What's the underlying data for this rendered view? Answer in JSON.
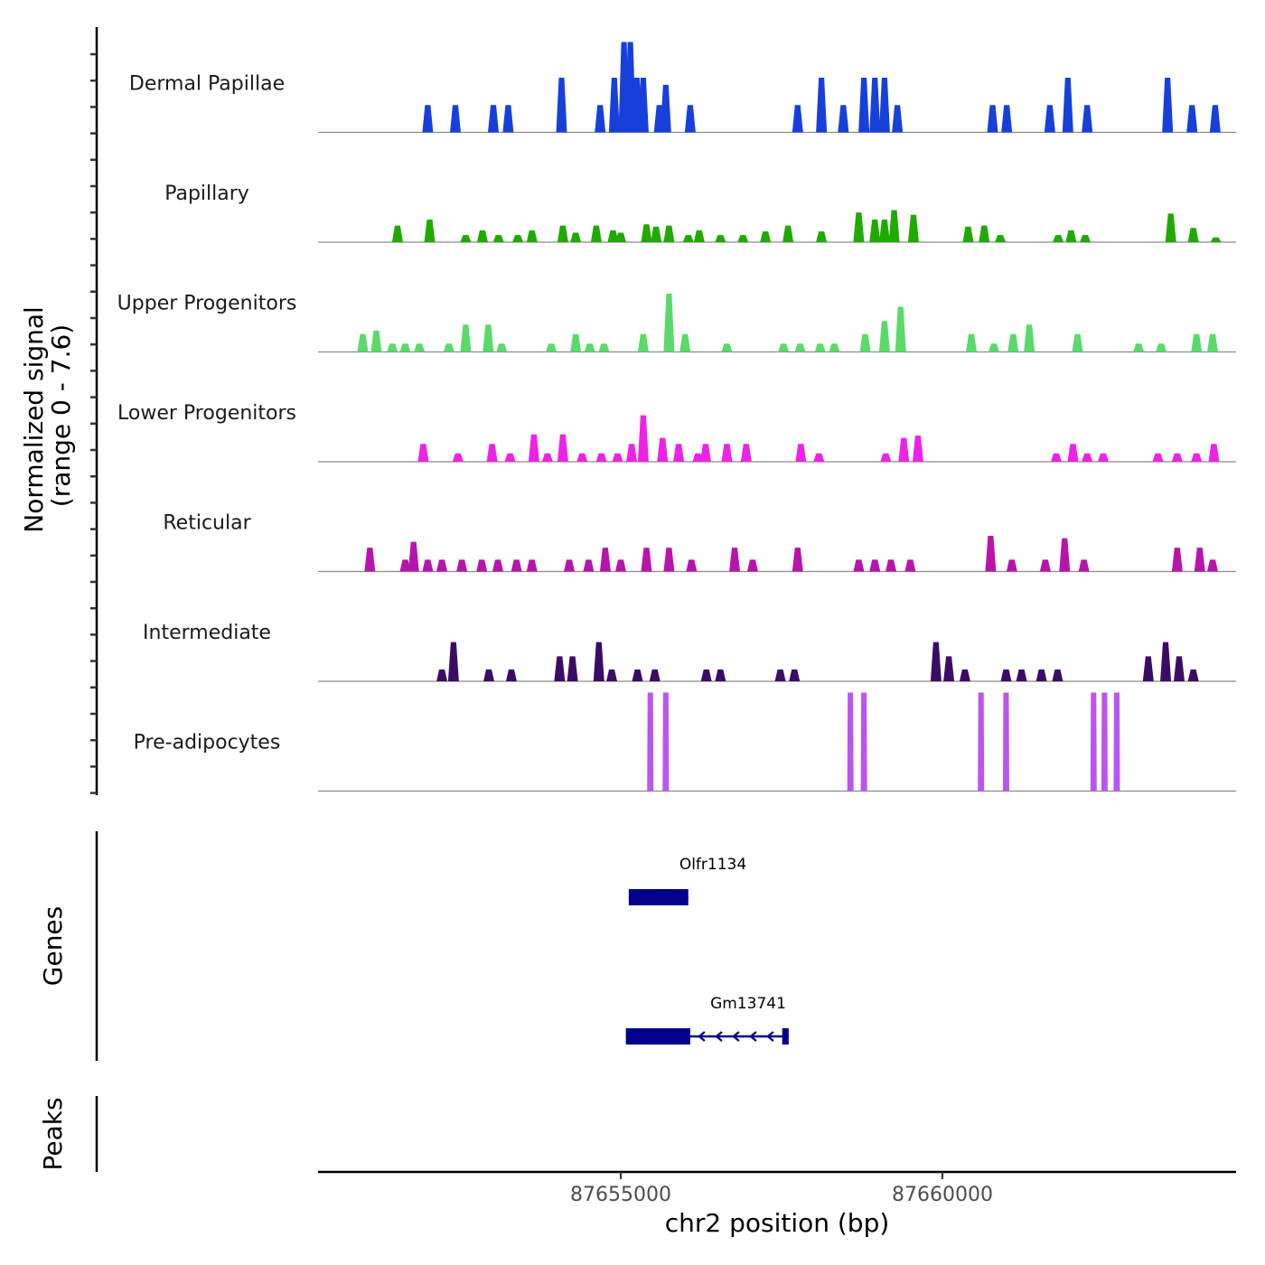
{
  "chart_data": {
    "type": "area",
    "title": "",
    "xlabel": "chr2 position (bp)",
    "ylabel": "Normalized signal\n(range 0 - 7.6)",
    "ylabel_lines": [
      "Normalized signal",
      "(range 0 - 7.6)"
    ],
    "ylim": [
      0,
      7.6
    ],
    "xlim": [
      87650295,
      87664565
    ],
    "x_ticks": [
      87655000,
      87660000
    ],
    "x_tick_labels": [
      "87655000",
      "87660000"
    ],
    "grid": false,
    "tracks": [
      {
        "name": "Dermal Papillae",
        "color": "#1740DB",
        "peaks": [
          [
            87652000,
            2.3
          ],
          [
            87652430,
            2.3
          ],
          [
            87653020,
            2.3
          ],
          [
            87653250,
            2.3
          ],
          [
            87654080,
            4.6
          ],
          [
            87654680,
            2.3
          ],
          [
            87654900,
            4.6
          ],
          [
            87655050,
            7.6
          ],
          [
            87655150,
            7.6
          ],
          [
            87655250,
            4.6
          ],
          [
            87655350,
            4.6
          ],
          [
            87655600,
            2.3
          ],
          [
            87655700,
            4.0
          ],
          [
            87656080,
            2.3
          ],
          [
            87657750,
            2.3
          ],
          [
            87658120,
            4.6
          ],
          [
            87658460,
            2.3
          ],
          [
            87658780,
            4.6
          ],
          [
            87658950,
            4.6
          ],
          [
            87659100,
            4.6
          ],
          [
            87659300,
            2.3
          ],
          [
            87660780,
            2.3
          ],
          [
            87661000,
            2.3
          ],
          [
            87661670,
            2.3
          ],
          [
            87661950,
            4.6
          ],
          [
            87662250,
            2.3
          ],
          [
            87663500,
            4.6
          ],
          [
            87663880,
            2.3
          ],
          [
            87664240,
            2.3
          ]
        ]
      },
      {
        "name": "Papillary",
        "color": "#1FAA00",
        "peaks": [
          [
            87651530,
            1.4
          ],
          [
            87652030,
            1.9
          ],
          [
            87652590,
            0.6
          ],
          [
            87652850,
            1.0
          ],
          [
            87653100,
            0.6
          ],
          [
            87653400,
            0.6
          ],
          [
            87653620,
            1.0
          ],
          [
            87654100,
            1.4
          ],
          [
            87654300,
            0.8
          ],
          [
            87654620,
            1.4
          ],
          [
            87654880,
            1.0
          ],
          [
            87655000,
            0.8
          ],
          [
            87655400,
            1.5
          ],
          [
            87655550,
            1.3
          ],
          [
            87655750,
            1.4
          ],
          [
            87656050,
            0.6
          ],
          [
            87656220,
            1.0
          ],
          [
            87656550,
            0.6
          ],
          [
            87656900,
            0.6
          ],
          [
            87657250,
            0.9
          ],
          [
            87657600,
            1.4
          ],
          [
            87658120,
            0.9
          ],
          [
            87658700,
            2.5
          ],
          [
            87658950,
            1.9
          ],
          [
            87659100,
            1.9
          ],
          [
            87659250,
            2.7
          ],
          [
            87659550,
            2.3
          ],
          [
            87660400,
            1.3
          ],
          [
            87660650,
            1.4
          ],
          [
            87660900,
            0.6
          ],
          [
            87661800,
            0.6
          ],
          [
            87662000,
            1.0
          ],
          [
            87662220,
            0.6
          ],
          [
            87663550,
            2.4
          ],
          [
            87663900,
            1.2
          ],
          [
            87664250,
            0.4
          ]
        ]
      },
      {
        "name": "Upper Progenitors",
        "color": "#5ADA6A",
        "peaks": [
          [
            87650990,
            1.5
          ],
          [
            87651200,
            1.8
          ],
          [
            87651450,
            0.7
          ],
          [
            87651650,
            0.7
          ],
          [
            87651870,
            0.7
          ],
          [
            87652330,
            0.7
          ],
          [
            87652590,
            2.3
          ],
          [
            87652940,
            2.3
          ],
          [
            87653150,
            0.7
          ],
          [
            87653920,
            0.7
          ],
          [
            87654300,
            1.5
          ],
          [
            87654520,
            0.7
          ],
          [
            87654740,
            0.7
          ],
          [
            87655350,
            1.5
          ],
          [
            87655750,
            4.9
          ],
          [
            87656000,
            1.5
          ],
          [
            87656650,
            0.7
          ],
          [
            87657530,
            0.7
          ],
          [
            87657790,
            0.7
          ],
          [
            87658100,
            0.7
          ],
          [
            87658320,
            0.7
          ],
          [
            87658800,
            1.5
          ],
          [
            87659100,
            2.6
          ],
          [
            87659350,
            3.8
          ],
          [
            87660450,
            1.5
          ],
          [
            87660800,
            0.7
          ],
          [
            87661100,
            1.5
          ],
          [
            87661350,
            2.3
          ],
          [
            87662100,
            1.5
          ],
          [
            87663050,
            0.7
          ],
          [
            87663400,
            0.7
          ],
          [
            87663950,
            1.5
          ],
          [
            87664200,
            1.5
          ]
        ]
      },
      {
        "name": "Lower Progenitors",
        "color": "#EE22E6",
        "peaks": [
          [
            87651930,
            1.5
          ],
          [
            87652470,
            0.7
          ],
          [
            87653000,
            1.5
          ],
          [
            87653280,
            0.7
          ],
          [
            87653650,
            2.3
          ],
          [
            87653860,
            0.7
          ],
          [
            87654100,
            2.3
          ],
          [
            87654400,
            0.7
          ],
          [
            87654700,
            0.7
          ],
          [
            87654950,
            0.7
          ],
          [
            87655170,
            1.5
          ],
          [
            87655350,
            3.9
          ],
          [
            87655650,
            2.0
          ],
          [
            87655900,
            1.5
          ],
          [
            87656200,
            0.7
          ],
          [
            87656320,
            1.5
          ],
          [
            87656650,
            1.5
          ],
          [
            87656950,
            1.5
          ],
          [
            87657800,
            1.5
          ],
          [
            87658080,
            0.7
          ],
          [
            87659120,
            0.7
          ],
          [
            87659400,
            2.0
          ],
          [
            87659620,
            2.2
          ],
          [
            87661770,
            0.7
          ],
          [
            87662030,
            1.5
          ],
          [
            87662250,
            0.7
          ],
          [
            87662500,
            0.7
          ],
          [
            87663350,
            0.7
          ],
          [
            87663650,
            0.7
          ],
          [
            87663950,
            0.7
          ],
          [
            87664220,
            1.5
          ]
        ]
      },
      {
        "name": "Reticular",
        "color": "#B814AB",
        "peaks": [
          [
            87651100,
            2.0
          ],
          [
            87651650,
            1.0
          ],
          [
            87651780,
            2.5
          ],
          [
            87652000,
            1.0
          ],
          [
            87652220,
            1.0
          ],
          [
            87652530,
            1.0
          ],
          [
            87652840,
            1.0
          ],
          [
            87653090,
            1.0
          ],
          [
            87653380,
            1.0
          ],
          [
            87653620,
            1.0
          ],
          [
            87654200,
            1.0
          ],
          [
            87654500,
            1.0
          ],
          [
            87654760,
            2.0
          ],
          [
            87655000,
            1.0
          ],
          [
            87655400,
            2.0
          ],
          [
            87655750,
            2.0
          ],
          [
            87656100,
            1.0
          ],
          [
            87656770,
            2.0
          ],
          [
            87657050,
            1.0
          ],
          [
            87657750,
            2.0
          ],
          [
            87658700,
            1.0
          ],
          [
            87658950,
            1.0
          ],
          [
            87659200,
            1.0
          ],
          [
            87659500,
            1.0
          ],
          [
            87660750,
            3.0
          ],
          [
            87661080,
            1.0
          ],
          [
            87661600,
            1.0
          ],
          [
            87661900,
            2.8
          ],
          [
            87662200,
            1.0
          ],
          [
            87663650,
            2.0
          ],
          [
            87664000,
            2.0
          ],
          [
            87664200,
            1.0
          ]
        ]
      },
      {
        "name": "Intermediate",
        "color": "#3A0C66",
        "peaks": [
          [
            87652220,
            1.0
          ],
          [
            87652400,
            3.3
          ],
          [
            87652950,
            1.0
          ],
          [
            87653300,
            1.0
          ],
          [
            87654050,
            2.1
          ],
          [
            87654250,
            2.1
          ],
          [
            87654660,
            3.3
          ],
          [
            87654860,
            1.0
          ],
          [
            87655260,
            1.0
          ],
          [
            87655530,
            1.0
          ],
          [
            87656330,
            1.0
          ],
          [
            87656550,
            1.0
          ],
          [
            87657480,
            1.0
          ],
          [
            87657700,
            1.0
          ],
          [
            87659900,
            3.3
          ],
          [
            87660100,
            2.1
          ],
          [
            87660350,
            1.0
          ],
          [
            87660990,
            1.0
          ],
          [
            87661230,
            1.0
          ],
          [
            87661540,
            1.0
          ],
          [
            87661790,
            1.0
          ],
          [
            87663200,
            2.1
          ],
          [
            87663470,
            3.3
          ],
          [
            87663680,
            2.1
          ],
          [
            87663900,
            1.0
          ]
        ]
      },
      {
        "name": "Pre-adipocytes",
        "color": "#BB55F0",
        "peaks": [
          [
            87655460,
            7.6
          ],
          [
            87655700,
            7.6
          ],
          [
            87658570,
            7.6
          ],
          [
            87658780,
            7.6
          ],
          [
            87660600,
            7.6
          ],
          [
            87660990,
            7.6
          ],
          [
            87662350,
            7.6
          ],
          [
            87662520,
            7.6
          ],
          [
            87662710,
            7.6
          ]
        ]
      }
    ],
    "genes_track": {
      "label": "Genes",
      "color": "#00008B",
      "genes": [
        {
          "name": "Olfr1134",
          "start": 87655125,
          "end": 87656050,
          "strand": "-",
          "exons": [
            [
              87655125,
              87656050
            ]
          ]
        },
        {
          "name": "Gm13741",
          "start": 87655080,
          "end": 87657610,
          "strand": "-",
          "exons": [
            [
              87655080,
              87656080
            ],
            [
              87657510,
              87657610
            ]
          ]
        }
      ]
    },
    "peaks_track": {
      "label": "Peaks",
      "peaks": []
    }
  }
}
